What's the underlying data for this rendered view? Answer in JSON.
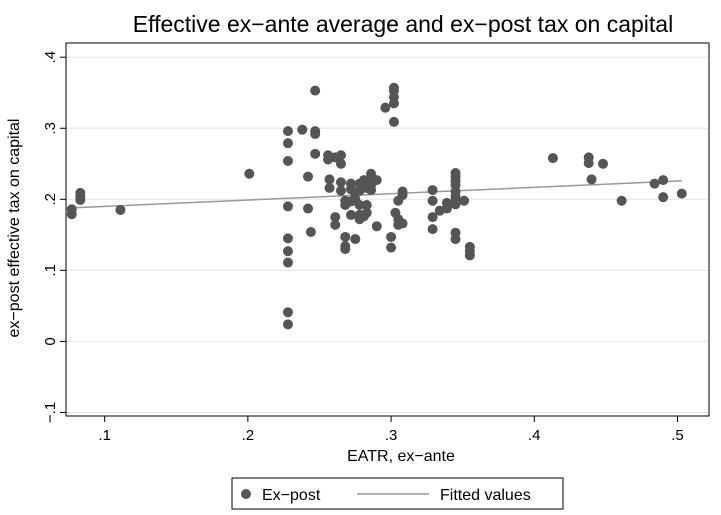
{
  "chart_data": {
    "type": "scatter",
    "title": "Effective ex−ante average and ex−post tax on capital",
    "xlabel": "EATR, ex−ante",
    "ylabel": "ex−post effective tax on capital",
    "xlim": [
      0.073,
      0.522
    ],
    "ylim": [
      -0.105,
      0.42
    ],
    "x_ticks": [
      0.1,
      0.2,
      0.3,
      0.4,
      0.5
    ],
    "x_tick_labels": [
      ".1",
      ".2",
      ".3",
      ".4",
      ".5"
    ],
    "y_ticks": [
      -0.1,
      0,
      0.1,
      0.2,
      0.3,
      0.4
    ],
    "y_tick_labels": [
      "−.1",
      "0",
      ".1",
      ".2",
      ".3",
      ".4"
    ],
    "grid": "horizontal",
    "legend_position": "bottom",
    "series": [
      {
        "name": "Ex−post",
        "kind": "scatter",
        "color": "#555555",
        "points": [
          [
            0.077,
            0.179
          ],
          [
            0.077,
            0.186
          ],
          [
            0.083,
            0.199
          ],
          [
            0.083,
            0.204
          ],
          [
            0.083,
            0.209
          ],
          [
            0.111,
            0.185
          ],
          [
            0.201,
            0.236
          ],
          [
            0.228,
            0.296
          ],
          [
            0.228,
            0.279
          ],
          [
            0.228,
            0.254
          ],
          [
            0.228,
            0.19
          ],
          [
            0.228,
            0.145
          ],
          [
            0.228,
            0.127
          ],
          [
            0.228,
            0.111
          ],
          [
            0.228,
            0.041
          ],
          [
            0.228,
            0.024
          ],
          [
            0.238,
            0.298
          ],
          [
            0.242,
            0.232
          ],
          [
            0.242,
            0.187
          ],
          [
            0.244,
            0.154
          ],
          [
            0.247,
            0.353
          ],
          [
            0.247,
            0.296
          ],
          [
            0.247,
            0.292
          ],
          [
            0.247,
            0.264
          ],
          [
            0.256,
            0.262
          ],
          [
            0.256,
            0.256
          ],
          [
            0.257,
            0.228
          ],
          [
            0.257,
            0.216
          ],
          [
            0.261,
            0.259
          ],
          [
            0.261,
            0.175
          ],
          [
            0.261,
            0.164
          ],
          [
            0.265,
            0.262
          ],
          [
            0.265,
            0.25
          ],
          [
            0.265,
            0.224
          ],
          [
            0.265,
            0.212
          ],
          [
            0.268,
            0.198
          ],
          [
            0.268,
            0.192
          ],
          [
            0.268,
            0.147
          ],
          [
            0.268,
            0.134
          ],
          [
            0.268,
            0.13
          ],
          [
            0.272,
            0.222
          ],
          [
            0.272,
            0.214
          ],
          [
            0.272,
            0.197
          ],
          [
            0.272,
            0.178
          ],
          [
            0.275,
            0.208
          ],
          [
            0.275,
            0.2
          ],
          [
            0.275,
            0.144
          ],
          [
            0.278,
            0.222
          ],
          [
            0.278,
            0.212
          ],
          [
            0.278,
            0.192
          ],
          [
            0.278,
            0.178
          ],
          [
            0.278,
            0.172
          ],
          [
            0.281,
            0.227
          ],
          [
            0.281,
            0.176
          ],
          [
            0.283,
            0.224
          ],
          [
            0.283,
            0.216
          ],
          [
            0.283,
            0.192
          ],
          [
            0.283,
            0.181
          ],
          [
            0.286,
            0.236
          ],
          [
            0.286,
            0.228
          ],
          [
            0.286,
            0.22
          ],
          [
            0.286,
            0.213
          ],
          [
            0.29,
            0.227
          ],
          [
            0.29,
            0.162
          ],
          [
            0.296,
            0.329
          ],
          [
            0.3,
            0.132
          ],
          [
            0.3,
            0.147
          ],
          [
            0.302,
            0.357
          ],
          [
            0.302,
            0.353
          ],
          [
            0.302,
            0.344
          ],
          [
            0.302,
            0.335
          ],
          [
            0.302,
            0.309
          ],
          [
            0.303,
            0.181
          ],
          [
            0.305,
            0.198
          ],
          [
            0.305,
            0.172
          ],
          [
            0.305,
            0.164
          ],
          [
            0.308,
            0.211
          ],
          [
            0.308,
            0.206
          ],
          [
            0.308,
            0.166
          ],
          [
            0.329,
            0.213
          ],
          [
            0.329,
            0.198
          ],
          [
            0.329,
            0.175
          ],
          [
            0.329,
            0.158
          ],
          [
            0.334,
            0.184
          ],
          [
            0.339,
            0.195
          ],
          [
            0.339,
            0.187
          ],
          [
            0.345,
            0.237
          ],
          [
            0.345,
            0.232
          ],
          [
            0.345,
            0.226
          ],
          [
            0.345,
            0.22
          ],
          [
            0.345,
            0.211
          ],
          [
            0.345,
            0.204
          ],
          [
            0.345,
            0.198
          ],
          [
            0.345,
            0.193
          ],
          [
            0.345,
            0.153
          ],
          [
            0.345,
            0.144
          ],
          [
            0.351,
            0.198
          ],
          [
            0.355,
            0.133
          ],
          [
            0.355,
            0.127
          ],
          [
            0.355,
            0.121
          ],
          [
            0.413,
            0.258
          ],
          [
            0.438,
            0.259
          ],
          [
            0.438,
            0.251
          ],
          [
            0.44,
            0.228
          ],
          [
            0.448,
            0.25
          ],
          [
            0.461,
            0.198
          ],
          [
            0.484,
            0.222
          ],
          [
            0.49,
            0.227
          ],
          [
            0.49,
            0.203
          ],
          [
            0.503,
            0.208
          ]
        ]
      },
      {
        "name": "Fitted values",
        "kind": "line",
        "color": "#999999",
        "points": [
          [
            0.077,
            0.188
          ],
          [
            0.503,
            0.226
          ]
        ]
      }
    ]
  }
}
